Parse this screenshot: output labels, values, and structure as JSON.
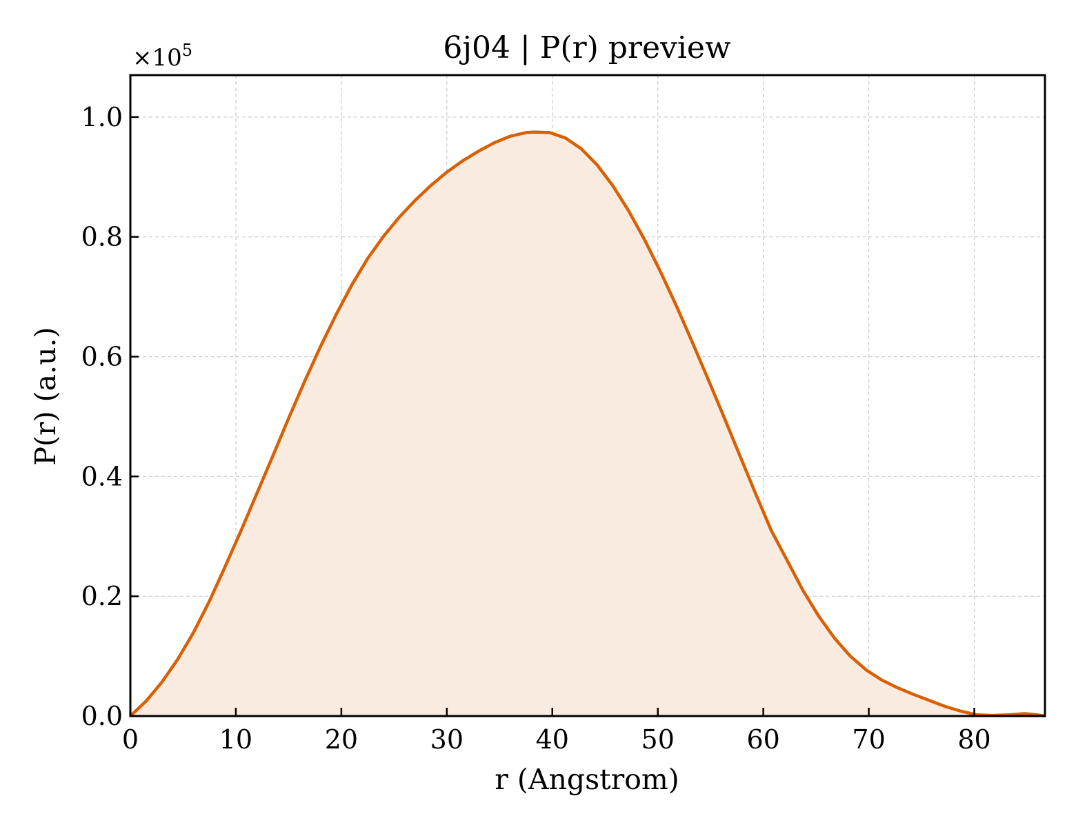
{
  "chart_data": {
    "type": "area",
    "title": "6j04 | P(r) preview",
    "xlabel": "r (Angstrom)",
    "ylabel": "P(r) (a.u.)",
    "y_offset_label": "×10",
    "y_offset_exponent": "5",
    "xlim": [
      0,
      86.7
    ],
    "ylim": [
      0,
      1.07
    ],
    "xticks": [
      0,
      10,
      20,
      30,
      40,
      50,
      60,
      70,
      80
    ],
    "xtick_labels": [
      "0",
      "10",
      "20",
      "30",
      "40",
      "50",
      "60",
      "70",
      "80"
    ],
    "yticks": [
      0.0,
      0.2,
      0.4,
      0.6,
      0.8,
      1.0
    ],
    "ytick_labels": [
      "0.0",
      "0.2",
      "0.4",
      "0.6",
      "0.8",
      "1.0"
    ],
    "grid": true,
    "line_color": "#d95f02",
    "fill_color": "#f9ebe0",
    "series": [
      {
        "x": [
          0,
          1.5,
          3.0,
          4.5,
          6.0,
          7.5,
          9.0,
          10.5,
          12.0,
          13.5,
          15.0,
          16.5,
          18.0,
          19.5,
          21.0,
          22.5,
          24.0,
          25.5,
          27.0,
          28.5,
          30.0,
          31.5,
          33.0,
          34.5,
          36.0,
          37.5,
          38.25,
          39.75,
          41.25,
          42.75,
          44.25,
          45.75,
          47.25,
          48.75,
          50.25,
          51.75,
          53.25,
          54.75,
          56.25,
          57.75,
          59.25,
          60.75,
          62.25,
          63.75,
          65.25,
          66.75,
          68.25,
          69.75,
          71.25,
          72.75,
          74.25,
          75.75,
          77.25,
          78.75,
          80.25,
          81.75,
          83.25,
          84.75,
          86.0,
          86.7
        ],
        "y": [
          0.0,
          0.025,
          0.057,
          0.095,
          0.14,
          0.192,
          0.25,
          0.31,
          0.372,
          0.434,
          0.497,
          0.558,
          0.616,
          0.67,
          0.72,
          0.764,
          0.801,
          0.833,
          0.861,
          0.886,
          0.908,
          0.927,
          0.943,
          0.957,
          0.968,
          0.974,
          0.975,
          0.974,
          0.965,
          0.947,
          0.92,
          0.885,
          0.843,
          0.795,
          0.742,
          0.685,
          0.625,
          0.563,
          0.5,
          0.436,
          0.372,
          0.31,
          0.26,
          0.21,
          0.167,
          0.13,
          0.1,
          0.077,
          0.06,
          0.047,
          0.036,
          0.026,
          0.016,
          0.008,
          0.002,
          0.001,
          0.002,
          0.004,
          0.002,
          0.0
        ]
      }
    ]
  }
}
